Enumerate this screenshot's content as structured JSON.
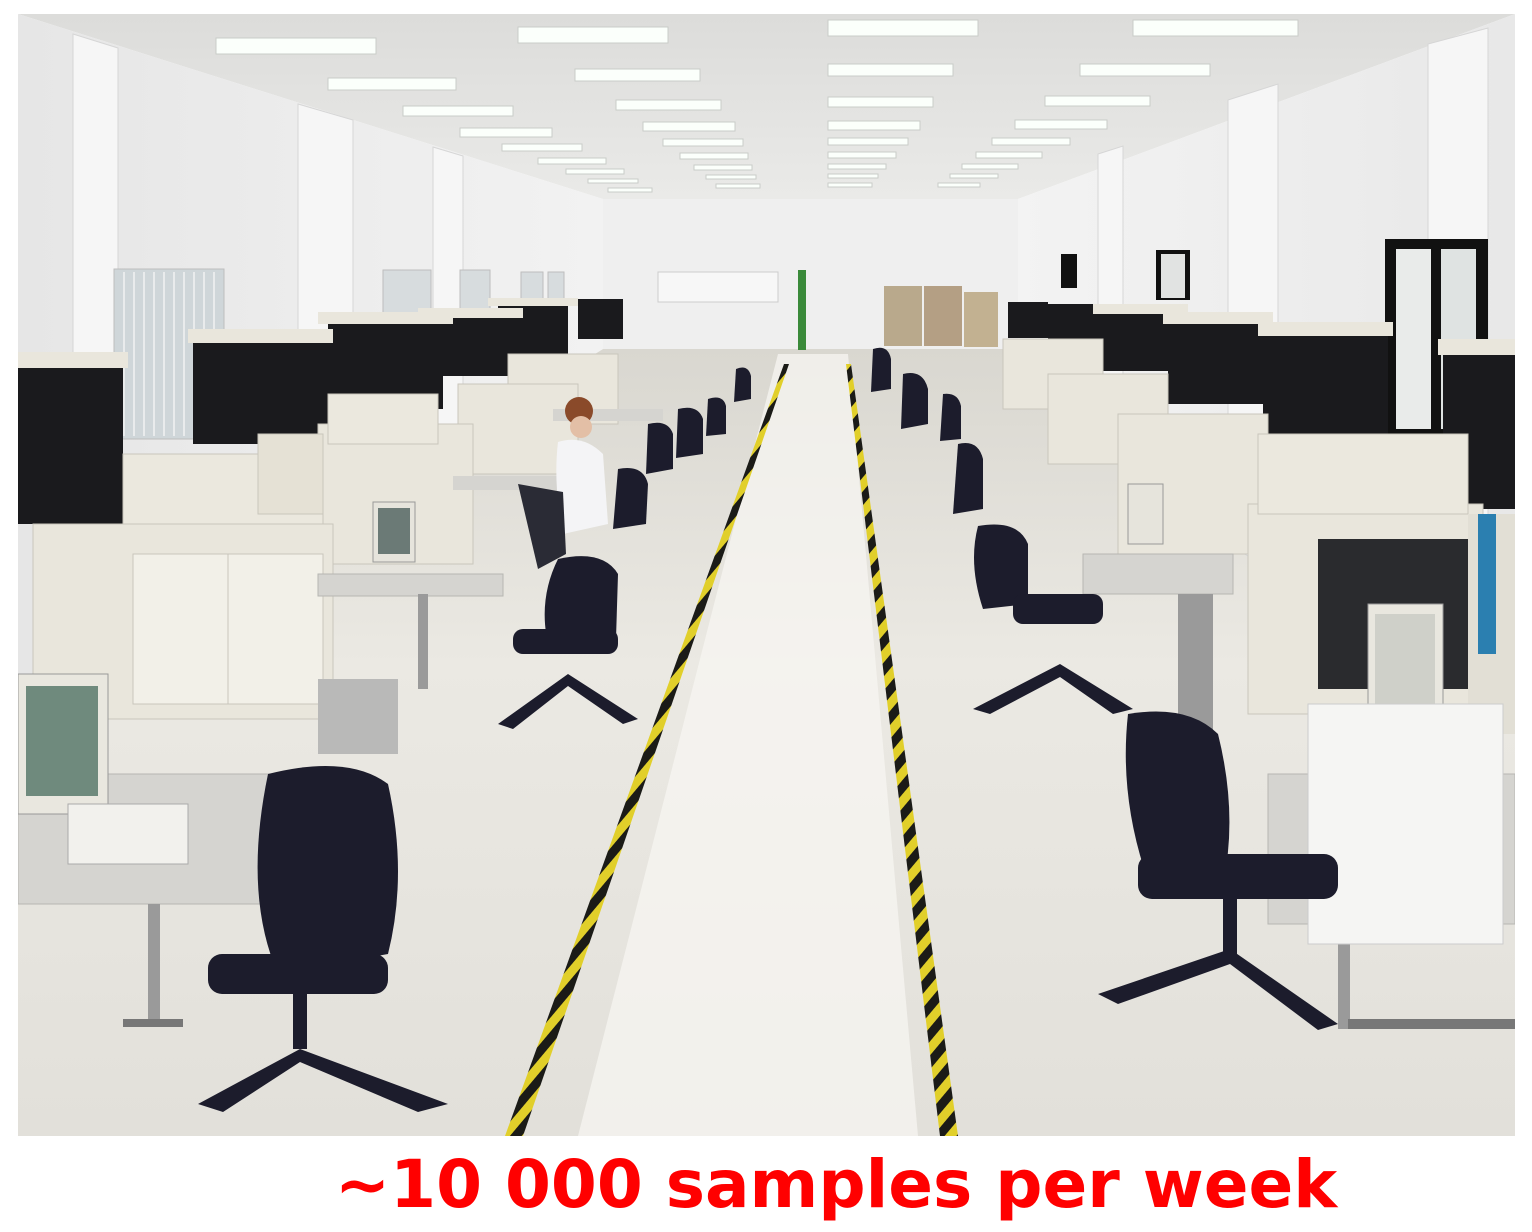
{
  "photo": {
    "subject": "lab-floor-photo",
    "colors": {
      "wall": "#eeeeee",
      "ceiling": "#e4e4e2",
      "floor": "#e8e6e0",
      "floor_reflection": "#f7f6f2",
      "light_panel": "#fbfffb",
      "instrument_body": "#e9e6dc",
      "instrument_dark": "#1a1a1d",
      "chair": "#1c1c2c",
      "desk": "#d5d4d0",
      "safety_tape_yellow": "#e1cf2a",
      "safety_tape_black": "#1b1b17",
      "window": "#cfd6d9"
    }
  },
  "caption": {
    "text": "~10 000 samples per week",
    "color": "#ff0000"
  }
}
